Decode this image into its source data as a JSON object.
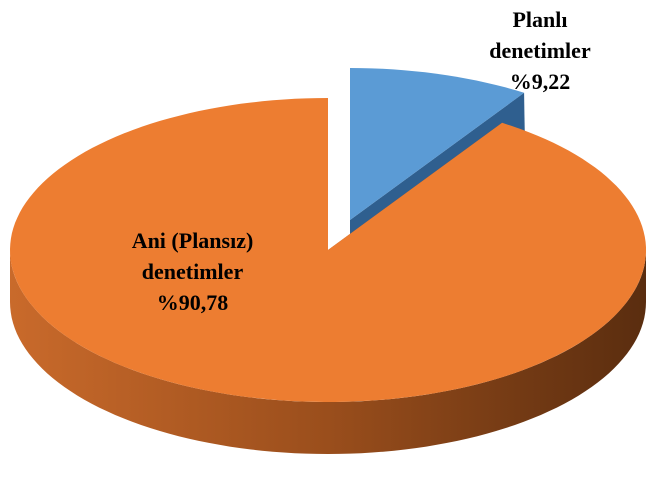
{
  "chart_data": {
    "type": "pie",
    "categories": [
      "Planlı denetimler",
      "Ani (Plansız) denetimler"
    ],
    "values": [
      9.22,
      90.78
    ],
    "value_labels": [
      "%9,22",
      "%90,78"
    ],
    "colors": [
      "#5b9bd5",
      "#ed7d31"
    ]
  }
}
